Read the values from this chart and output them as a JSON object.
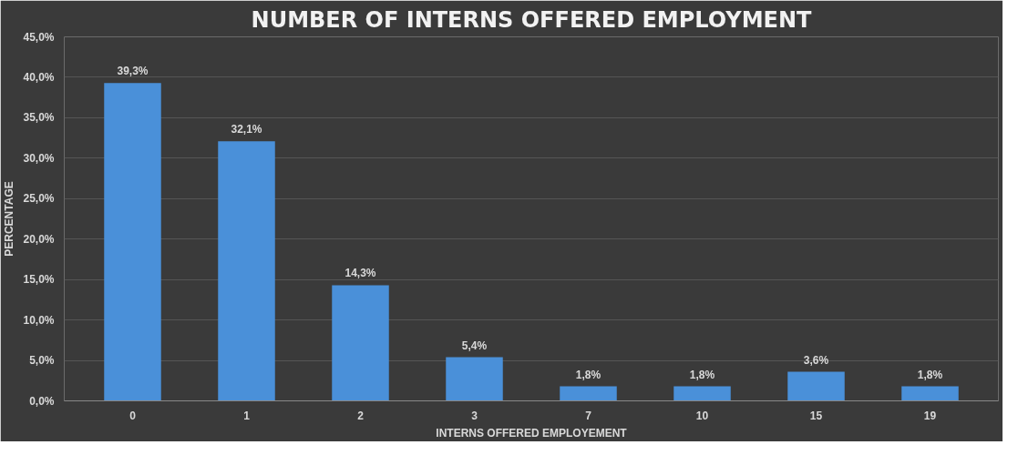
{
  "chart_data": {
    "type": "bar",
    "title": "NUMBER OF INTERNS OFFERED EMPLOYMENT",
    "xlabel": "INTERNS OFFERED EMPLOYEMENT",
    "ylabel": "PERCENTAGE",
    "categories": [
      "0",
      "1",
      "2",
      "3",
      "7",
      "10",
      "15",
      "19"
    ],
    "values": [
      39.3,
      32.1,
      14.3,
      5.4,
      1.8,
      1.8,
      3.6,
      1.8
    ],
    "value_labels": [
      "39,3%",
      "32,1%",
      "14,3%",
      "5,4%",
      "1,8%",
      "1,8%",
      "3,6%",
      "1,8%"
    ],
    "color": "#4a90d9",
    "ylim": [
      0,
      45
    ],
    "yticks": [
      {
        "value": 0,
        "label": "0,0%"
      },
      {
        "value": 5,
        "label": "5,0%"
      },
      {
        "value": 10,
        "label": "10,0%"
      },
      {
        "value": 15,
        "label": "15,0%"
      },
      {
        "value": 20,
        "label": "20,0%"
      },
      {
        "value": 25,
        "label": "25,0%"
      },
      {
        "value": 30,
        "label": "30,0%"
      },
      {
        "value": 35,
        "label": "35,0%"
      },
      {
        "value": 40,
        "label": "40,0%"
      },
      {
        "value": 45,
        "label": "45,0%"
      }
    ],
    "grid": "y"
  }
}
